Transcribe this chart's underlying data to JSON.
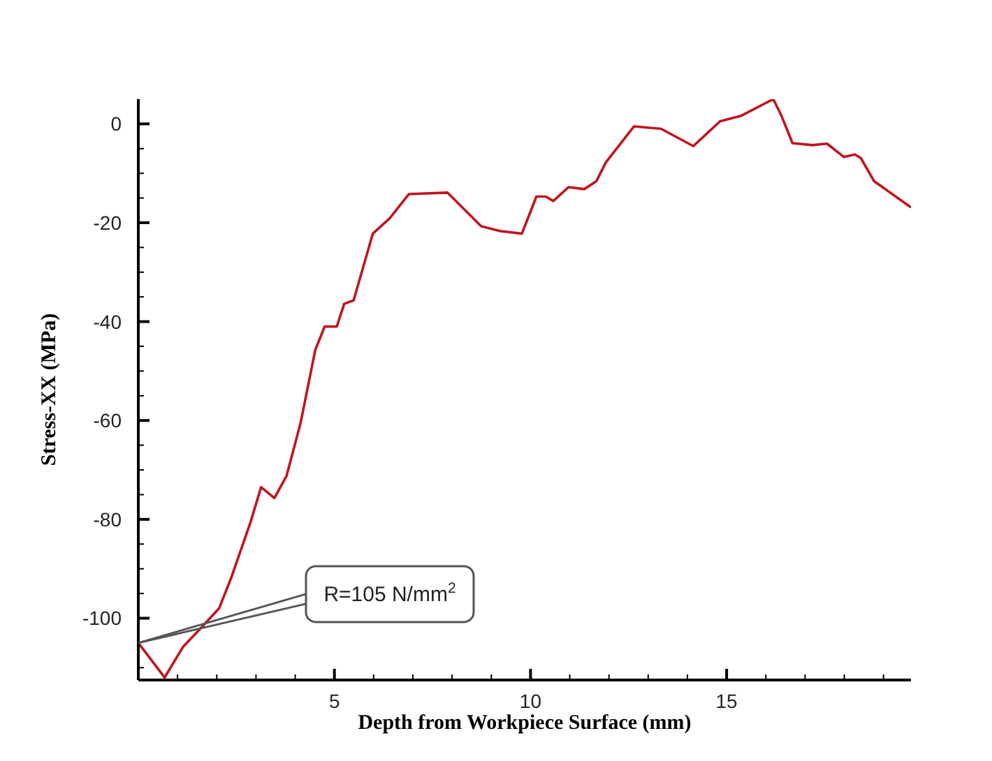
{
  "chart_data": {
    "type": "line",
    "xlabel": "Depth from Workpiece Surface (mm)",
    "ylabel": "Stress-XX (MPa)",
    "x": [
      0,
      0.67,
      1.14,
      1.63,
      2.06,
      2.37,
      2.86,
      3.13,
      3.47,
      3.78,
      4.14,
      4.51,
      4.75,
      5.06,
      5.25,
      5.49,
      5.98,
      6.41,
      6.9,
      7.88,
      8.74,
      9.23,
      9.78,
      10.15,
      10.39,
      10.58,
      10.97,
      11.37,
      11.68,
      11.92,
      12.64,
      13.33,
      14.15,
      14.83,
      15.36,
      16.19,
      16.4,
      16.68,
      17.19,
      17.56,
      17.99,
      18.27,
      18.42,
      18.76,
      19.7
    ],
    "series": [
      {
        "color": "#c0141e",
        "values": [
          -105,
          -112,
          -105.8,
          -101.7,
          -98,
          -91.8,
          -80.6,
          -73.5,
          -75.7,
          -71.2,
          -60.4,
          -45.8,
          -41,
          -41,
          -36.4,
          -35.7,
          -22.2,
          -19.1,
          -14.2,
          -13.9,
          -20.7,
          -21.7,
          -22.2,
          -14.7,
          -14.7,
          -15.6,
          -12.8,
          -13.2,
          -11.6,
          -7.8,
          -0.5,
          -1,
          -4.5,
          0.5,
          1.6,
          5,
          1.6,
          -3.9,
          -4.3,
          -4,
          -6.7,
          -6.2,
          -6.9,
          -11.6,
          -16.9
        ]
      }
    ],
    "xlim": [
      0,
      19.7
    ],
    "ylim": [
      -112.5,
      5
    ],
    "xticks": [
      {
        "value": 1,
        "label": null
      },
      {
        "value": 2,
        "label": null
      },
      {
        "value": 3,
        "label": null
      },
      {
        "value": 4,
        "label": null
      },
      5,
      {
        "value": 6,
        "label": null
      },
      {
        "value": 7,
        "label": null
      },
      {
        "value": 8,
        "label": null
      },
      {
        "value": 9,
        "label": null
      },
      10,
      {
        "value": 11,
        "label": null
      },
      {
        "value": 12,
        "label": null
      },
      {
        "value": 13,
        "label": null
      },
      {
        "value": 14,
        "label": null
      },
      15,
      {
        "value": 16,
        "label": null
      },
      {
        "value": 17,
        "label": null
      },
      {
        "value": 18,
        "label": null
      },
      {
        "value": 19,
        "label": null
      }
    ],
    "yticks": [
      {
        "value": -110,
        "label": null
      },
      -100,
      {
        "value": -95,
        "label": null
      },
      {
        "value": -90,
        "label": null
      },
      {
        "value": -85,
        "label": null
      },
      -80,
      {
        "value": -75,
        "label": null
      },
      {
        "value": -70,
        "label": null
      },
      {
        "value": -65,
        "label": null
      },
      -60,
      {
        "value": -55,
        "label": null
      },
      {
        "value": -50,
        "label": null
      },
      {
        "value": -45,
        "label": null
      },
      -40,
      {
        "value": -35,
        "label": null
      },
      {
        "value": -30,
        "label": null
      },
      {
        "value": -25,
        "label": null
      },
      -20,
      {
        "value": -15,
        "label": null
      },
      {
        "value": -10,
        "label": null
      },
      {
        "value": -5,
        "label": null
      },
      0
    ],
    "annotations": [
      {
        "text": "R=105 N/mm$^{2}$",
        "x": 0,
        "y": -105
      }
    ],
    "grid": false,
    "legend": false,
    "marker": "none",
    "line_style": "solid"
  }
}
